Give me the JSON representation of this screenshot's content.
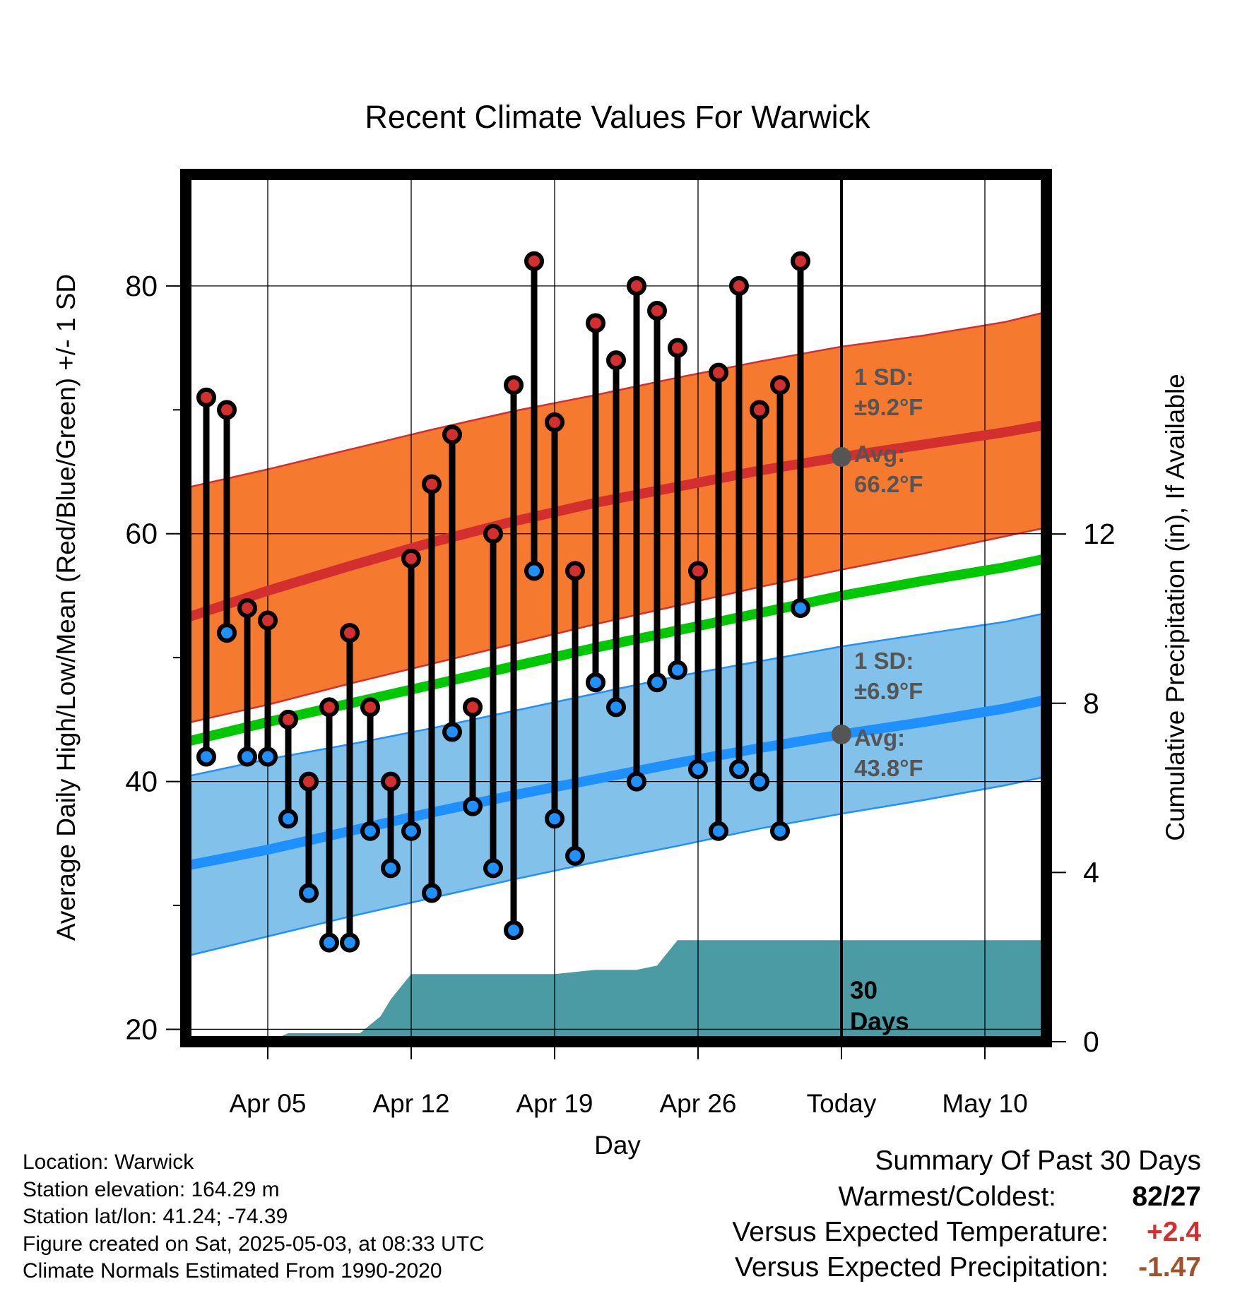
{
  "chart_data": {
    "type": "line",
    "title": "Recent Climate Values For Warwick",
    "xlabel": "Day",
    "ylabel": "Average Daily High/Low/Mean (Red/Blue/Green) +/- 1 SD",
    "y2label": "Cumulative Precipitation (in), If Available",
    "xlim": [
      0,
      42
    ],
    "ylim": [
      19,
      89
    ],
    "y2lim": [
      0,
      20.5
    ],
    "x_ticks": [
      {
        "x": 4,
        "label": "Apr 05"
      },
      {
        "x": 11,
        "label": "Apr 12"
      },
      {
        "x": 18,
        "label": "Apr 19"
      },
      {
        "x": 25,
        "label": "Apr 26"
      },
      {
        "x": 32,
        "label": "Today"
      },
      {
        "x": 39,
        "label": "May 10"
      }
    ],
    "y_ticks": [
      20,
      40,
      60,
      80
    ],
    "y_minor_ticks": [
      30,
      50,
      70
    ],
    "y2_ticks": [
      0,
      4,
      8,
      12
    ],
    "today_x": 32,
    "grid": true,
    "legend": "none",
    "colors": {
      "high": "#d32f2f",
      "low": "#1e90ff",
      "mean": "#00c800",
      "high_band": "#f5792e",
      "low_band": "#82c2ea",
      "precip": "#4a9ba3",
      "avg_marker": "#555555"
    },
    "normals": {
      "x": [
        0,
        4,
        8,
        12,
        16,
        20,
        24,
        28,
        32,
        36,
        40,
        42
      ],
      "high_avg": [
        53.2,
        55.4,
        57.4,
        59.3,
        61.0,
        62.5,
        63.8,
        65.1,
        66.2,
        67.2,
        68.2,
        68.8
      ],
      "high_upper": [
        63.7,
        65.2,
        66.8,
        68.4,
        69.9,
        71.2,
        72.6,
        73.9,
        75.1,
        76.0,
        77.1,
        77.9
      ],
      "high_lower": [
        44.7,
        46.2,
        47.9,
        49.5,
        51.1,
        52.7,
        54.2,
        55.7,
        57.1,
        58.4,
        59.8,
        60.5
      ],
      "mean": [
        43.2,
        44.8,
        46.3,
        47.8,
        49.3,
        50.8,
        52.2,
        53.6,
        55.0,
        56.2,
        57.3,
        58.0
      ],
      "low_avg": [
        33.2,
        34.5,
        36.0,
        37.5,
        38.9,
        40.2,
        41.5,
        42.7,
        43.8,
        44.8,
        45.9,
        46.6
      ],
      "low_upper": [
        40.4,
        41.8,
        43.0,
        44.3,
        45.7,
        47.1,
        48.5,
        49.7,
        50.9,
        51.9,
        52.9,
        53.6
      ],
      "low_lower": [
        25.9,
        27.5,
        29.1,
        30.6,
        32.1,
        33.5,
        34.8,
        36.2,
        37.4,
        38.5,
        39.7,
        40.4
      ]
    },
    "series": [
      {
        "name": "High",
        "x": [
          1,
          2,
          3,
          4,
          5,
          6,
          7,
          8,
          9,
          10,
          11,
          12,
          13,
          14,
          15,
          16,
          17,
          18,
          19,
          20,
          21,
          22,
          23,
          24,
          25,
          26,
          27,
          28,
          29,
          30,
          31
        ],
        "values": [
          71,
          70,
          54,
          53,
          45,
          40,
          46,
          52,
          46,
          40,
          58,
          64,
          68,
          46,
          60,
          72,
          82,
          69,
          57,
          77,
          74,
          80,
          78,
          75,
          57,
          73,
          80,
          70,
          72,
          82,
          null
        ]
      },
      {
        "name": "Low",
        "x": [
          1,
          2,
          3,
          4,
          5,
          6,
          7,
          8,
          9,
          10,
          11,
          12,
          13,
          14,
          15,
          16,
          17,
          18,
          19,
          20,
          21,
          22,
          23,
          24,
          25,
          26,
          27,
          28,
          29,
          30,
          31
        ],
        "values": [
          42,
          52,
          42,
          42,
          37,
          31,
          27,
          27,
          36,
          33,
          36,
          31,
          44,
          38,
          33,
          28,
          57,
          37,
          34,
          48,
          46,
          40,
          48,
          49,
          41,
          36,
          41,
          40,
          36,
          54,
          null
        ]
      }
    ],
    "precipitation": {
      "x": [
        0,
        4,
        5,
        8,
        8.5,
        9,
        9.5,
        10,
        11,
        12,
        15,
        18,
        20,
        22,
        23,
        24,
        25,
        26,
        30,
        31,
        42
      ],
      "values": [
        0,
        0,
        0.2,
        0.2,
        0.2,
        0.4,
        0.6,
        1.0,
        1.6,
        1.6,
        1.6,
        1.6,
        1.7,
        1.7,
        1.8,
        2.4,
        2.4,
        2.4,
        2.4,
        2.4,
        2.4
      ]
    },
    "annotations": {
      "high_sd_title": "1 SD:",
      "high_sd_value": "±9.2°F",
      "high_avg_title": "Avg:",
      "high_avg_value": "66.2°F",
      "low_sd_title": "1 SD:",
      "low_sd_value": "±6.9°F",
      "low_avg_title": "Avg:",
      "low_avg_value": "43.8°F",
      "precip_label_1": "30",
      "precip_label_2": "Days"
    }
  },
  "footer": {
    "location": "Location: Warwick",
    "elevation": "Station elevation: 164.29 m",
    "latlon": "Station lat/lon: 41.24; -74.39",
    "created": "Figure created on Sat, 2025-05-03, at 08:33 UTC",
    "normals": "Climate Normals Estimated From 1990-2020"
  },
  "summary": {
    "title": "Summary Of Past 30 Days",
    "warmest_label": "Warmest/Coldest:",
    "warmest_value": "82/27",
    "temp_label": "Versus Expected Temperature:",
    "temp_value": "+2.4",
    "temp_color": "#d32f2f",
    "precip_label": "Versus Expected Precipitation:",
    "precip_value": "-1.47",
    "precip_color": "#a0522d"
  }
}
